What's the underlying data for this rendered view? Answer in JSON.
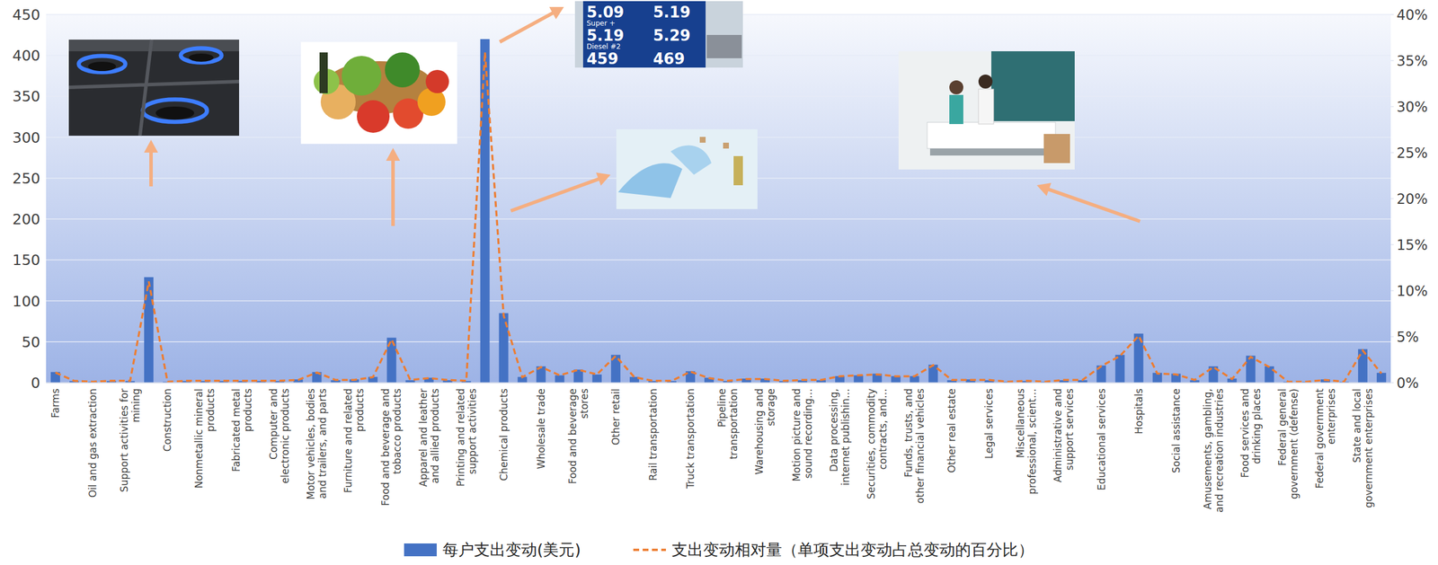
{
  "chart_data": {
    "type": "bar",
    "categories": [
      "Farms",
      null,
      "Oil and gas extraction",
      null,
      "Support activities for mining",
      null,
      "Construction",
      null,
      "Nonmetallic mineral products",
      null,
      "Fabricated metal products",
      null,
      "Computer and electronic products",
      null,
      "Motor vehicles, bodies and trailers, and parts",
      null,
      "Furniture and related products",
      null,
      "Food and beverage and tobacco products",
      null,
      "Apparel and leather and allied products",
      null,
      "Printing and related support activities",
      null,
      "Chemical products",
      null,
      "Wholesale trade",
      null,
      "Food and beverage stores",
      null,
      "Other retail",
      null,
      "Rail transportation",
      null,
      "Truck transportation",
      null,
      "Pipeline transportation",
      null,
      "Warehousing and storage",
      null,
      "Motion picture and sound recording…",
      null,
      "Data processing, internet publishin…",
      null,
      "Securities, commodity contracts, and…",
      null,
      "Funds, trusts, and other financial vehicles",
      null,
      "Other real estate",
      null,
      "Legal services",
      null,
      "Miscellaneous professional, scient…",
      null,
      "Administrative and support services",
      null,
      "Educational services",
      null,
      "Hospitals",
      null,
      "Social assistance",
      null,
      "Amusements, gambling, and recreation industries",
      null,
      "Food services and drinking places",
      null,
      "Federal general government (defense)",
      null,
      "Federal government enterprises",
      null,
      "State and local government enterprises",
      null
    ],
    "series": [
      {
        "name": "每户支出变动(美元)",
        "type": "bar",
        "color": "#4472c4",
        "values": [
          13,
          2,
          1,
          2,
          2,
          129,
          1,
          2,
          2,
          2,
          2,
          2,
          2,
          4,
          13,
          3,
          4,
          7,
          55,
          3,
          6,
          3,
          2,
          420,
          85,
          7,
          20,
          9,
          16,
          10,
          34,
          7,
          2,
          2,
          14,
          6,
          2,
          5,
          5,
          2,
          3,
          3,
          8,
          9,
          11,
          8,
          8,
          22,
          3,
          4,
          3,
          1,
          2,
          1,
          3,
          3,
          21,
          34,
          60,
          12,
          11,
          3,
          20,
          5,
          33,
          20,
          1,
          1,
          4,
          1,
          41,
          12
        ]
      },
      {
        "name": "支出变动相对量（单项支出变动占总变动的百分比）",
        "type": "line",
        "axis": "y2",
        "color": "#ed7d31",
        "line_style": "dashed",
        "values": [
          1.1,
          0.2,
          0.1,
          0.2,
          0.2,
          11.0,
          0.1,
          0.2,
          0.2,
          0.2,
          0.2,
          0.2,
          0.2,
          0.3,
          1.1,
          0.3,
          0.3,
          0.6,
          4.7,
          0.3,
          0.5,
          0.3,
          0.2,
          35.9,
          7.3,
          0.6,
          1.7,
          0.8,
          1.4,
          0.9,
          2.9,
          0.6,
          0.2,
          0.2,
          1.2,
          0.5,
          0.2,
          0.4,
          0.4,
          0.2,
          0.3,
          0.3,
          0.7,
          0.8,
          0.9,
          0.7,
          0.7,
          1.9,
          0.3,
          0.3,
          0.3,
          0.1,
          0.2,
          0.1,
          0.3,
          0.3,
          1.8,
          2.9,
          5.1,
          1.0,
          0.9,
          0.3,
          1.7,
          0.4,
          2.8,
          1.7,
          0.1,
          0.1,
          0.3,
          0.1,
          3.5,
          1.0
        ]
      }
    ],
    "ylim": [
      0,
      450
    ],
    "yticks": [
      0,
      50,
      100,
      150,
      200,
      250,
      300,
      350,
      400,
      450
    ],
    "y2lim": [
      0,
      40
    ],
    "y2ticks": [
      {
        "value": 0,
        "label": "0%"
      },
      {
        "value": 5,
        "label": "5%"
      },
      {
        "value": 10,
        "label": "10%"
      },
      {
        "value": 15,
        "label": "15%"
      },
      {
        "value": 20,
        "label": "20%"
      },
      {
        "value": 25,
        "label": "25%"
      },
      {
        "value": 30,
        "label": "30%"
      },
      {
        "value": 35,
        "label": "35%"
      },
      {
        "value": 40,
        "label": "40%"
      }
    ],
    "grid": true,
    "legend": "bottom",
    "annotations": [
      "5.09",
      "5.19",
      "Super +",
      "5.19",
      "5.29",
      "Diesel #2",
      "459",
      "469"
    ]
  }
}
